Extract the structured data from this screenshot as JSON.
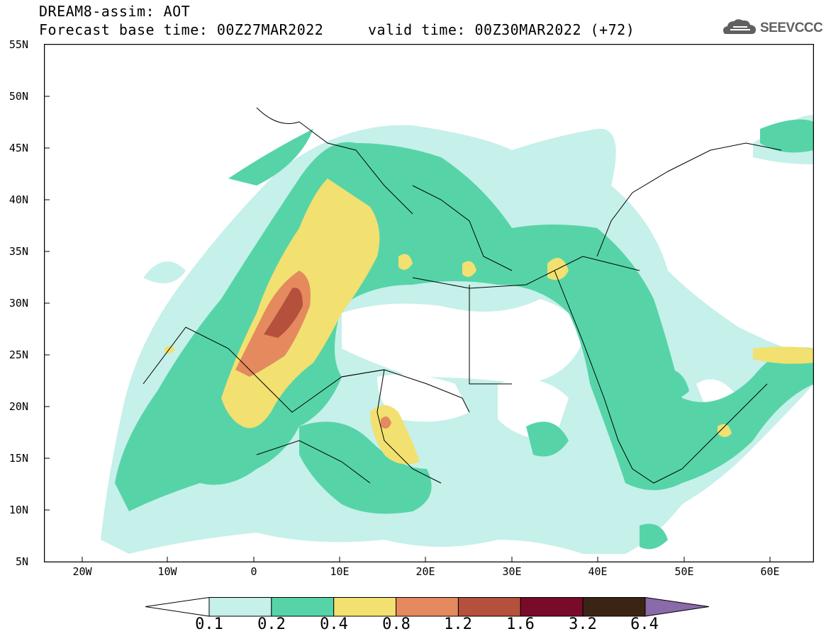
{
  "header": {
    "title_line1": "DREAM8-assim: AOT",
    "title_line2": "Forecast base time: 00Z27MAR2022     valid time: 00Z30MAR2022 (+72)"
  },
  "logo": {
    "text": "SEEVCCC",
    "icon": "cloud-logo-icon"
  },
  "map": {
    "lat_labels": [
      "55N",
      "50N",
      "45N",
      "40N",
      "35N",
      "30N",
      "25N",
      "20N",
      "15N",
      "10N",
      "5N"
    ],
    "lon_labels": [
      "20W",
      "10W",
      "0",
      "10E",
      "20E",
      "30E",
      "40E",
      "50E",
      "60E"
    ],
    "background_color": "#ffffff",
    "border_color": "#000000"
  },
  "colorbar": {
    "labels": [
      "0.1",
      "0.2",
      "0.4",
      "0.8",
      "1.2",
      "1.6",
      "3.2",
      "6.4"
    ],
    "colors": [
      "#ffffff",
      "#c6f0ea",
      "#56d4a8",
      "#f2e070",
      "#e48a5e",
      "#b4503c",
      "#7a0a2a",
      "#3c2414",
      "#8a6aa8"
    ]
  }
}
